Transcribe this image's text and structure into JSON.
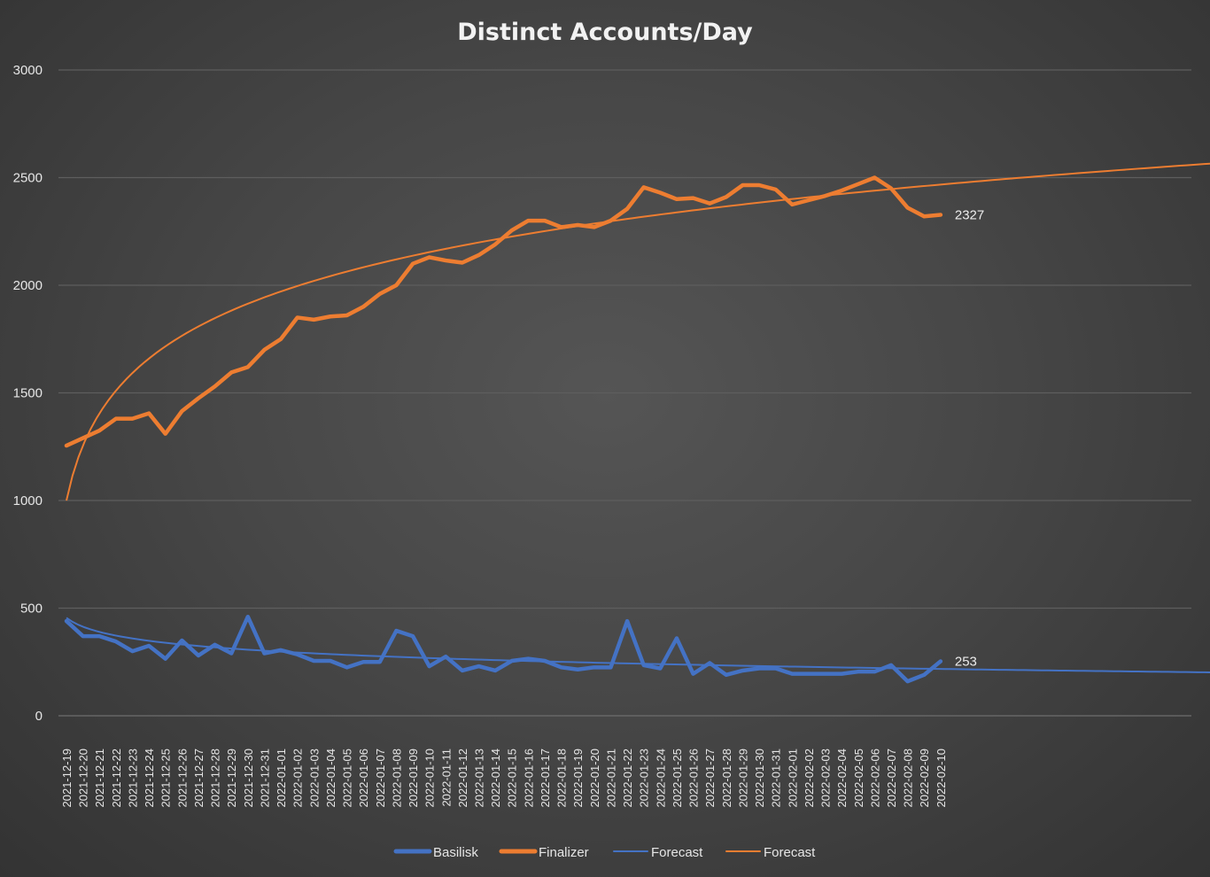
{
  "chart_data": {
    "type": "line",
    "title": "Distinct Accounts/Day",
    "ylim": [
      0,
      3000
    ],
    "yticks": [
      0,
      500,
      1000,
      1500,
      2000,
      2500,
      3000
    ],
    "grid": true,
    "legend_position": "bottom",
    "categories": [
      "2021-12-19",
      "2021-12-20",
      "2021-12-21",
      "2021-12-22",
      "2021-12-23",
      "2021-12-24",
      "2021-12-25",
      "2021-12-26",
      "2021-12-27",
      "2021-12-28",
      "2021-12-29",
      "2021-12-30",
      "2021-12-31",
      "2022-01-01",
      "2022-01-02",
      "2022-01-03",
      "2022-01-04",
      "2022-01-05",
      "2022-01-06",
      "2022-01-07",
      "2022-01-08",
      "2022-01-09",
      "2022-01-10",
      "2022-01-11",
      "2022-01-12",
      "2022-01-13",
      "2022-01-14",
      "2022-01-15",
      "2022-01-16",
      "2022-01-17",
      "2022-01-18",
      "2022-01-19",
      "2022-01-20",
      "2022-01-21",
      "2022-01-22",
      "2022-01-23",
      "2022-01-24",
      "2022-01-25",
      "2022-01-26",
      "2022-01-27",
      "2022-01-28",
      "2022-01-29",
      "2022-01-30",
      "2022-01-31",
      "2022-02-01",
      "2022-02-02",
      "2022-02-03",
      "2022-02-04",
      "2022-02-05",
      "2022-02-06",
      "2022-02-07",
      "2022-02-08",
      "2022-02-09",
      "2022-02-10"
    ],
    "series": [
      {
        "name": "Basilisk",
        "color": "#4472C4",
        "style": "thick",
        "values": [
          440,
          370,
          370,
          345,
          300,
          325,
          265,
          350,
          280,
          330,
          290,
          460,
          290,
          305,
          285,
          255,
          255,
          225,
          250,
          250,
          395,
          370,
          230,
          275,
          210,
          230,
          210,
          255,
          265,
          255,
          225,
          215,
          225,
          225,
          440,
          235,
          220,
          360,
          195,
          245,
          190,
          210,
          220,
          220,
          195,
          195,
          195,
          195,
          205,
          205,
          235,
          160,
          190,
          253
        ],
        "end_label": "253"
      },
      {
        "name": "Finalizer",
        "color": "#ED7D31",
        "style": "thick",
        "values": [
          1255,
          1290,
          1325,
          1380,
          1380,
          1405,
          1310,
          1415,
          1475,
          1530,
          1595,
          1620,
          1700,
          1750,
          1850,
          1840,
          1855,
          1860,
          1900,
          1960,
          2000,
          2100,
          2130,
          2115,
          2105,
          2140,
          2190,
          2255,
          2300,
          2300,
          2270,
          2280,
          2270,
          2300,
          2355,
          2455,
          2430,
          2400,
          2405,
          2380,
          2410,
          2465,
          2465,
          2445,
          2375,
          2395,
          2415,
          2440,
          2470,
          2500,
          2450,
          2360,
          2320,
          2327
        ],
        "end_label": "2327"
      },
      {
        "name": "Forecast",
        "color": "#4472C4",
        "style": "thin",
        "trend_of": "Basilisk",
        "trend": "log",
        "start": 455,
        "forecast_forward": 20
      },
      {
        "name": "Forecast",
        "color": "#ED7D31",
        "style": "thin",
        "trend_of": "Finalizer",
        "trend": "log",
        "start": 1000,
        "forecast_forward": 20
      }
    ]
  }
}
